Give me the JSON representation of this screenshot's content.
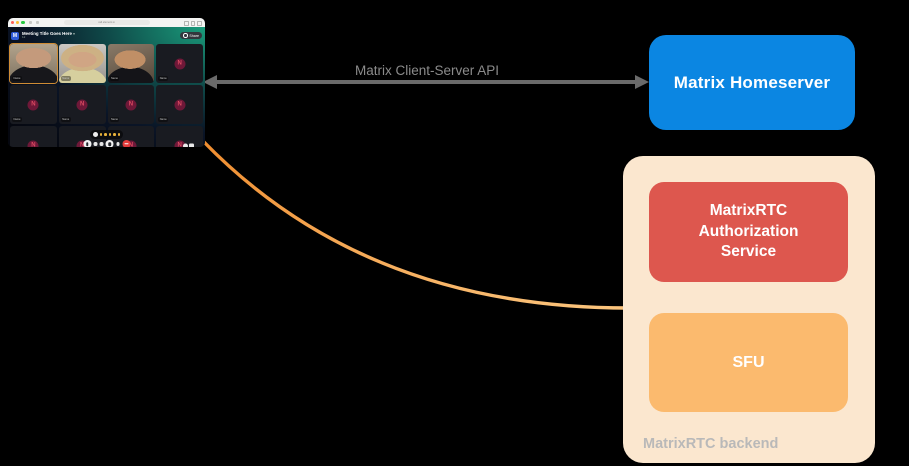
{
  "colors": {
    "homeserver_blue": "#0b86e2",
    "auth_red": "#dd574e",
    "sfu_orange": "#fbba6e",
    "backend_bg": "#fbe7cf",
    "backend_label_gray": "#b9b9b9",
    "arrow_gray": "#6a6a6a",
    "curve_orange": "#f5a24e",
    "avatar_crimson": "#6e1838",
    "avatar_letter": "#de4a62",
    "active_speaker_border": "#cf8c34"
  },
  "diagram": {
    "api_arrow_label": "Matrix Client-Server API",
    "homeserver_label": "Matrix Homeserver",
    "auth_service_label": "MatrixRTC Authorization Service",
    "sfu_label": "SFU",
    "backend_label": "MatrixRTC backend"
  },
  "call_window": {
    "browser": {
      "url": "call.element.io"
    },
    "header": {
      "workspace_initial": "M",
      "title": "Meeting Title Goes Here",
      "participant_count": "12",
      "share_button": "Share"
    },
    "tiles": [
      {
        "type": "video",
        "variant": "v1",
        "active": true,
        "name": "Name"
      },
      {
        "type": "video",
        "variant": "v2",
        "name": "Name"
      },
      {
        "type": "video",
        "variant": "v3",
        "name": "Name"
      },
      {
        "type": "avatar",
        "letter": "N",
        "name": "Name"
      },
      {
        "type": "avatar",
        "letter": "N",
        "name": "Name"
      },
      {
        "type": "avatar",
        "letter": "N",
        "name": "Name"
      },
      {
        "type": "avatar",
        "letter": "N",
        "name": "Name"
      },
      {
        "type": "avatar",
        "letter": "N",
        "name": "Name"
      },
      {
        "type": "avatar",
        "letter": "N",
        "name": "Name",
        "presence": true
      },
      {
        "type": "avatar",
        "letter": "N",
        "name": "Name"
      },
      {
        "type": "avatar",
        "letter": "N",
        "name": "Name"
      },
      {
        "type": "avatar",
        "letter": "N",
        "name": "Name",
        "icons": true
      }
    ]
  }
}
